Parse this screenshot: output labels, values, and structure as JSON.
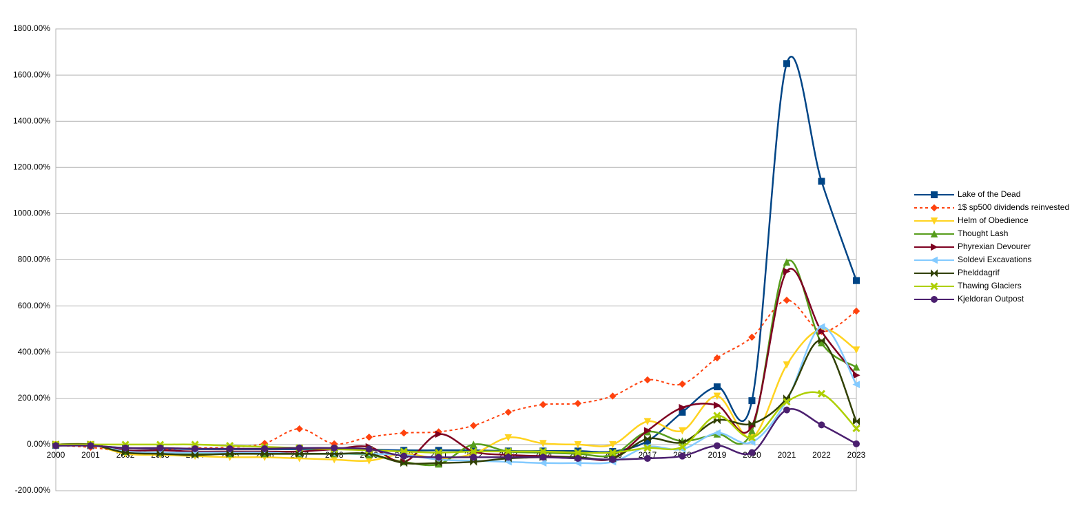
{
  "chart_data": {
    "type": "line",
    "smooth": true,
    "grid": true,
    "categories": [
      "2000",
      "2001",
      "2002",
      "2003",
      "2004",
      "2005",
      "2006",
      "2007",
      "2008",
      "2009",
      "2010",
      "2011",
      "2012",
      "2013",
      "2014",
      "2015",
      "2016",
      "2017",
      "2018",
      "2019",
      "2020",
      "2021",
      "2022",
      "2023"
    ],
    "ylim": [
      -200,
      1800
    ],
    "yticks": [
      {
        "value": -200,
        "label": "-200.00%"
      },
      {
        "value": 0,
        "label": "0.00%"
      },
      {
        "value": 200,
        "label": "200.00%"
      },
      {
        "value": 400,
        "label": "400.00%"
      },
      {
        "value": 600,
        "label": "600.00%"
      },
      {
        "value": 800,
        "label": "800.00%"
      },
      {
        "value": 1000,
        "label": "1000.00%"
      },
      {
        "value": 1200,
        "label": "1200.00%"
      },
      {
        "value": 1400,
        "label": "1400.00%"
      },
      {
        "value": 1600,
        "label": "1600.00%"
      },
      {
        "value": 1800,
        "label": "1800.00%"
      }
    ],
    "series": [
      {
        "name": "Lake of the Dead",
        "color": "#004586",
        "marker": "square",
        "values": [
          -3,
          -5,
          -15,
          -18,
          -20,
          -20,
          -20,
          -20,
          -20,
          -22,
          -25,
          -25,
          -25,
          -28,
          -28,
          -28,
          -30,
          15,
          140,
          250,
          190,
          1650,
          1140,
          710
        ]
      },
      {
        "name": "1$ sp500 dividends reinvested",
        "color": "#ff420e",
        "marker": "diamond",
        "dash": true,
        "values": [
          -3,
          -12,
          -30,
          -22,
          -15,
          -12,
          5,
          68,
          3,
          32,
          50,
          55,
          82,
          140,
          173,
          178,
          210,
          280,
          262,
          375,
          465,
          625,
          490,
          578
        ]
      },
      {
        "name": "Helm of Obedience",
        "color": "#ffd320",
        "marker": "triangle-down",
        "values": [
          0,
          0,
          -40,
          -45,
          -50,
          -55,
          -55,
          -60,
          -65,
          -70,
          -40,
          -60,
          -40,
          30,
          5,
          0,
          0,
          100,
          60,
          210,
          30,
          345,
          500,
          410
        ]
      },
      {
        "name": "Thought Lash",
        "color": "#579d1c",
        "marker": "triangle-up",
        "values": [
          0,
          0,
          -30,
          -35,
          -40,
          -40,
          -40,
          -40,
          -40,
          -45,
          -75,
          -85,
          0,
          -30,
          -35,
          -40,
          -45,
          55,
          15,
          45,
          60,
          790,
          440,
          335
        ]
      },
      {
        "name": "Phyrexian Devourer",
        "color": "#7e0021",
        "marker": "triangle-right",
        "values": [
          0,
          0,
          -25,
          -25,
          -30,
          -30,
          -30,
          -30,
          -20,
          -10,
          -75,
          45,
          -30,
          -45,
          -50,
          -55,
          -60,
          60,
          160,
          170,
          80,
          750,
          490,
          300
        ]
      },
      {
        "name": "Soldevi Excavations",
        "color": "#83caff",
        "marker": "triangle-left",
        "values": [
          0,
          0,
          -30,
          -35,
          -35,
          -35,
          -35,
          -40,
          -40,
          -40,
          -45,
          -65,
          -70,
          -75,
          -80,
          -80,
          -75,
          -10,
          -20,
          50,
          10,
          190,
          510,
          260
        ]
      },
      {
        "name": "Phelddagrif",
        "color": "#314004",
        "marker": "bowtie",
        "values": [
          0,
          0,
          -35,
          -40,
          -45,
          -40,
          -40,
          -40,
          -40,
          -40,
          -80,
          -80,
          -75,
          -60,
          -55,
          -55,
          -60,
          25,
          10,
          105,
          90,
          200,
          450,
          100
        ]
      },
      {
        "name": "Thawing Glaciers",
        "color": "#aecf00",
        "marker": "x",
        "values": [
          0,
          0,
          0,
          0,
          0,
          -5,
          -10,
          -15,
          -20,
          -25,
          -30,
          -35,
          -30,
          -30,
          -30,
          -35,
          -35,
          -15,
          -10,
          125,
          30,
          185,
          220,
          70
        ]
      },
      {
        "name": "Kjeldoran Outpost",
        "color": "#4b1f6f",
        "marker": "circle",
        "values": [
          -5,
          -5,
          -15,
          -15,
          -18,
          -18,
          -18,
          -15,
          -15,
          -20,
          -50,
          -55,
          -55,
          -55,
          -55,
          -60,
          -65,
          -60,
          -50,
          -5,
          -35,
          150,
          85,
          3
        ]
      }
    ]
  }
}
